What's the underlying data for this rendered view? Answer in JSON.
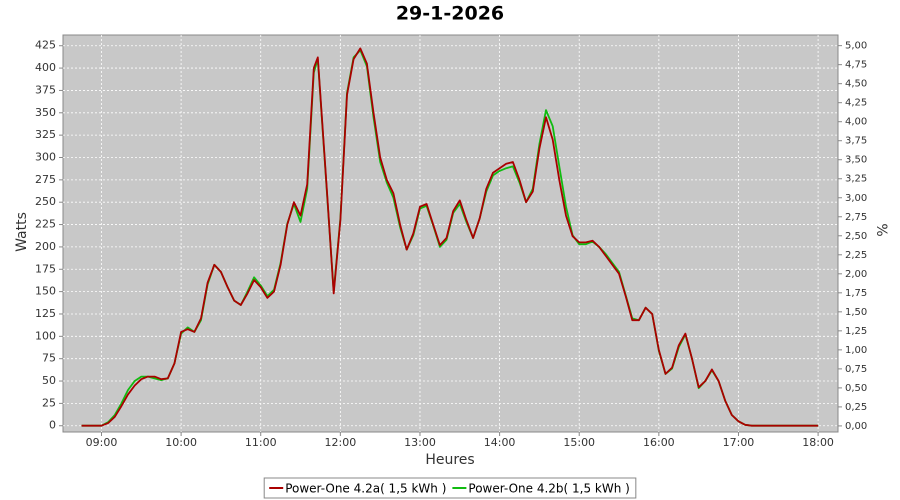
{
  "chart_data": {
    "type": "line",
    "title": "29-1-2026",
    "x_label": "Heures",
    "y_label": "Watts",
    "y2_label": "%",
    "x": [
      "08:45",
      "09:00",
      "09:05",
      "09:10",
      "09:15",
      "09:20",
      "09:25",
      "09:30",
      "09:35",
      "09:40",
      "09:45",
      "09:50",
      "09:55",
      "10:00",
      "10:05",
      "10:10",
      "10:15",
      "10:20",
      "10:25",
      "10:30",
      "10:35",
      "10:40",
      "10:45",
      "10:50",
      "10:55",
      "11:00",
      "11:05",
      "11:10",
      "11:15",
      "11:20",
      "11:25",
      "11:30",
      "11:35",
      "11:40",
      "11:43",
      "11:50",
      "11:55",
      "12:00",
      "12:05",
      "12:10",
      "12:15",
      "12:20",
      "12:25",
      "12:30",
      "12:35",
      "12:40",
      "12:45",
      "12:50",
      "12:55",
      "13:00",
      "13:05",
      "13:10",
      "13:15",
      "13:20",
      "13:25",
      "13:30",
      "13:35",
      "13:40",
      "13:45",
      "13:50",
      "13:55",
      "14:00",
      "14:05",
      "14:10",
      "14:15",
      "14:20",
      "14:25",
      "14:30",
      "14:35",
      "14:40",
      "14:45",
      "14:50",
      "14:55",
      "15:00",
      "15:05",
      "15:10",
      "15:15",
      "15:20",
      "15:25",
      "15:30",
      "15:35",
      "15:40",
      "15:45",
      "15:50",
      "15:55",
      "16:00",
      "16:05",
      "16:10",
      "16:15",
      "16:20",
      "16:25",
      "16:30",
      "16:35",
      "16:40",
      "16:45",
      "16:50",
      "16:55",
      "17:00",
      "17:05",
      "17:10",
      "17:30",
      "18:00"
    ],
    "series": [
      {
        "name": "Power-One 4.2a( 1,5 kWh )",
        "color": "#aa0000",
        "values": [
          0,
          0,
          3,
          10,
          22,
          35,
          45,
          52,
          55,
          55,
          52,
          53,
          70,
          105,
          108,
          105,
          120,
          160,
          180,
          172,
          155,
          140,
          135,
          148,
          163,
          155,
          143,
          150,
          180,
          225,
          250,
          235,
          270,
          400,
          412,
          260,
          148,
          230,
          370,
          410,
          422,
          405,
          350,
          300,
          275,
          260,
          225,
          197,
          215,
          245,
          248,
          225,
          202,
          210,
          240,
          252,
          230,
          210,
          232,
          265,
          283,
          288,
          293,
          295,
          275,
          250,
          262,
          310,
          345,
          320,
          275,
          235,
          212,
          205,
          205,
          207,
          200,
          190,
          180,
          170,
          145,
          118,
          118,
          132,
          125,
          85,
          58,
          65,
          90,
          103,
          75,
          43,
          50,
          63,
          50,
          28,
          12,
          5,
          1,
          0,
          0,
          0
        ]
      },
      {
        "name": "Power-One 4.2b( 1,5 kWh )",
        "color": "#11bb11",
        "values": [
          0,
          0,
          4,
          12,
          25,
          40,
          50,
          55,
          55,
          53,
          51,
          53,
          70,
          103,
          110,
          105,
          118,
          158,
          180,
          172,
          155,
          140,
          135,
          150,
          166,
          157,
          145,
          152,
          182,
          226,
          248,
          228,
          265,
          395,
          410,
          258,
          150,
          232,
          372,
          412,
          420,
          402,
          345,
          295,
          272,
          255,
          222,
          197,
          213,
          243,
          246,
          224,
          200,
          208,
          238,
          248,
          228,
          210,
          232,
          262,
          280,
          285,
          288,
          290,
          272,
          250,
          265,
          315,
          353,
          335,
          290,
          245,
          213,
          203,
          203,
          206,
          200,
          192,
          182,
          172,
          146,
          120,
          118,
          132,
          125,
          84,
          58,
          64,
          88,
          102,
          75,
          42,
          50,
          62,
          50,
          28,
          12,
          5,
          1,
          0,
          0,
          0
        ]
      }
    ],
    "xlim": [
      "08:31",
      "18:15"
    ],
    "xticks": [
      "09:00",
      "10:00",
      "11:00",
      "12:00",
      "13:00",
      "14:00",
      "15:00",
      "16:00",
      "17:00",
      "18:00"
    ],
    "ylim": [
      -7,
      437
    ],
    "yticks": [
      0,
      25,
      50,
      75,
      100,
      125,
      150,
      175,
      200,
      225,
      250,
      275,
      300,
      325,
      350,
      375,
      400,
      425
    ],
    "y2lim": [
      -0.08,
      5.14
    ],
    "y2ticks": [
      {
        "value": 0,
        "label": "0,00"
      },
      {
        "value": 0.25,
        "label": "0,25"
      },
      {
        "value": 0.5,
        "label": "0,50"
      },
      {
        "value": 0.75,
        "label": "0,75"
      },
      {
        "value": 1,
        "label": "1,00"
      },
      {
        "value": 1.25,
        "label": "1,25"
      },
      {
        "value": 1.5,
        "label": "1,50"
      },
      {
        "value": 1.75,
        "label": "1,75"
      },
      {
        "value": 2,
        "label": "2,00"
      },
      {
        "value": 2.25,
        "label": "2,25"
      },
      {
        "value": 2.5,
        "label": "2,50"
      },
      {
        "value": 2.75,
        "label": "2,75"
      },
      {
        "value": 3,
        "label": "3,00"
      },
      {
        "value": 3.25,
        "label": "3,25"
      },
      {
        "value": 3.5,
        "label": "3,50"
      },
      {
        "value": 3.75,
        "label": "3,75"
      },
      {
        "value": 4,
        "label": "4,00"
      },
      {
        "value": 4.25,
        "label": "4,25"
      },
      {
        "value": 4.5,
        "label": "4,50"
      },
      {
        "value": 4.75,
        "label": "4,75"
      },
      {
        "value": 5,
        "label": "5,00"
      }
    ],
    "grid": true,
    "plot_background": "#c8c8c8"
  }
}
